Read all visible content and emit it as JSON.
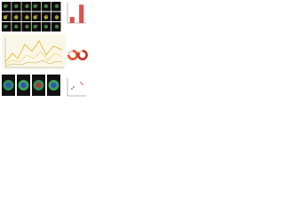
{
  "chart_data": [
    {
      "type": "bar",
      "values": [
        3,
        9
      ],
      "color": "#d9534f",
      "ylim": [
        0,
        10
      ]
    },
    {
      "type": "pie",
      "values": [
        75,
        25
      ],
      "colors": [
        "#e4572e",
        "#f2d0c4"
      ]
    },
    {
      "type": "pie",
      "values": [
        85,
        15
      ],
      "colors": [
        "#c0392b",
        "#f2d0c4"
      ]
    }
  ]
}
